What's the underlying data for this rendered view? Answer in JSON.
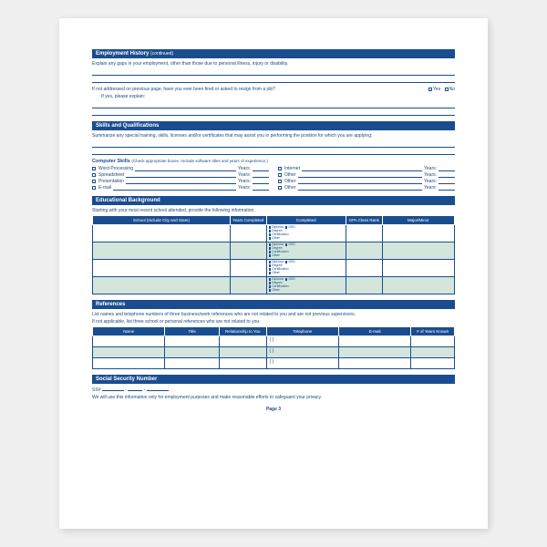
{
  "sections": {
    "emp_history": {
      "header": "Employment History",
      "cont": "(continued)",
      "gap_text": "Explain any gaps in your employment, other than those due to personal illness, injury or disability.",
      "fired_text": "If not addressed on previous page, have you ever been fired or asked to resign from a job?",
      "yes": "Yes",
      "no": "No",
      "ifyes": "If yes, please explain:"
    },
    "skills": {
      "header": "Skills and Qualifications",
      "summary": "Summarize any special training, skills, licenses and/or certificates that may assist you in performing the position for which you are applying:",
      "comp_header": "Computer Skills",
      "comp_note": "(Check appropriate boxes. Include software titles and years of experience.)",
      "items_left": [
        "Word Processing",
        "Spreadsheet",
        "Presentation",
        "E-mail"
      ],
      "items_right": [
        "Internet",
        "Other",
        "Other",
        "Other"
      ],
      "years": "Years:"
    },
    "edu": {
      "header": "Educational Background",
      "intro": "Starting with your most recent school attended, provide the following information.",
      "cols": [
        "School (Include City and State)",
        "Years Completed",
        "Completed",
        "GPA Class Rank",
        "Major/Minor"
      ],
      "comp_opts": [
        "Diploma",
        "GED",
        "Degree",
        "Certification",
        "Other"
      ]
    },
    "refs": {
      "header": "References",
      "intro1": "List names and telephone numbers of three business/work references who are not related to you and are not previous supervisors.",
      "intro2": "If not applicable, list three school or personal references who are not related to you.",
      "cols": [
        "Name",
        "Title",
        "Relationship to You",
        "Telephone",
        "E-mail",
        "# of Years Known"
      ]
    },
    "ssn": {
      "header": "Social Security Number",
      "label": "SS#",
      "note": "We will use this information only for employment purposes and make reasonable efforts to safeguard your privacy."
    }
  },
  "footer": "Page 3",
  "colors": {
    "primary": "#1a4d8f",
    "alt_row": "#d4e5db",
    "text": "#1e4a7a"
  }
}
